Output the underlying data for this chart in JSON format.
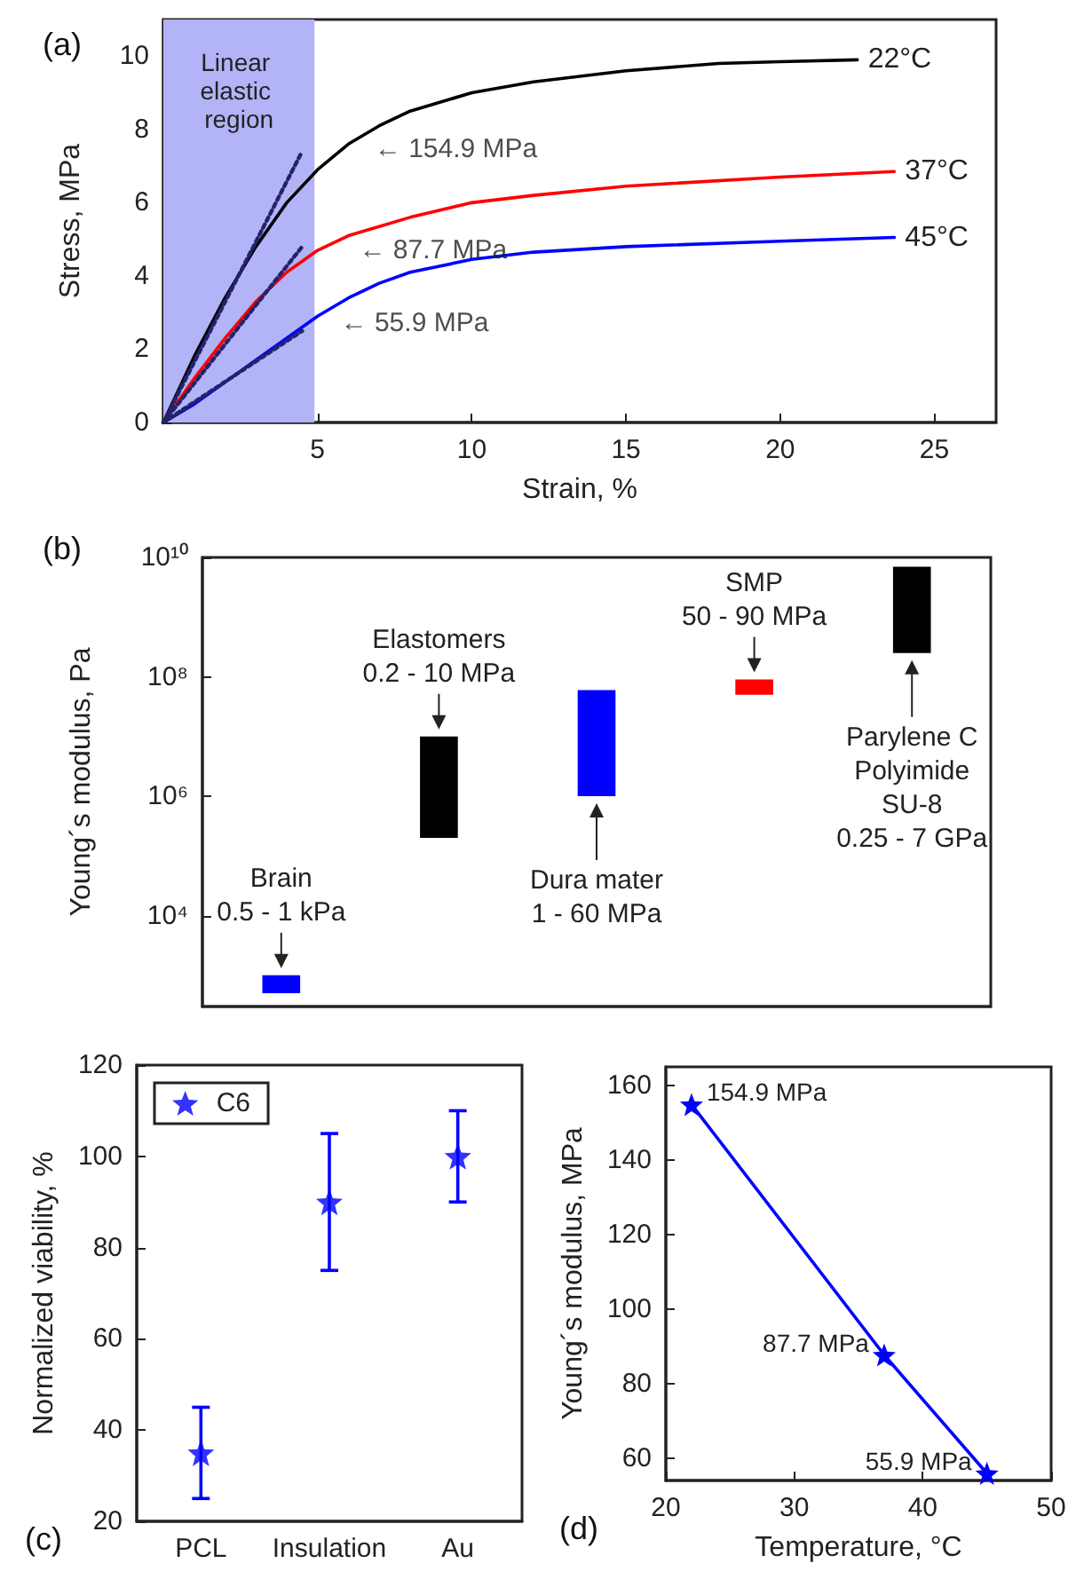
{
  "chart_data": [
    {
      "type": "line",
      "annotations": [
        "(a)",
        {
          "text": "← 154.9 MPa",
          "x": 6.5,
          "y": 7.85
        },
        {
          "text": "← 87.7 MPa",
          "x": 6,
          "y": 5.1
        },
        {
          "text": "← 55.9 MPa",
          "x": 5.4,
          "y": 3.1
        }
      ],
      "xlabel": "Strain, %",
      "ylabel": "Stress, MPa",
      "xlim": [
        0,
        27
      ],
      "ylim": [
        0,
        11
      ],
      "xticks": [
        5,
        10,
        15,
        20,
        25
      ],
      "yticks": [
        0,
        2,
        4,
        6,
        8,
        10
      ],
      "grid": false,
      "legend": false,
      "marker": "none",
      "bands": [
        {
          "axis": "x",
          "from": 0,
          "to": 4.9,
          "label": "Linear elastic region",
          "color": "#b3b3f8"
        }
      ],
      "series": [
        {
          "name": "22°C",
          "color": "#000000",
          "line_style": "solid",
          "x": [
            0,
            1,
            2,
            3,
            4,
            5,
            6,
            7,
            8,
            10,
            12,
            15,
            18,
            20,
            22.5
          ],
          "values": [
            0,
            1.8,
            3.4,
            4.8,
            6,
            6.9,
            7.6,
            8.1,
            8.5,
            9,
            9.3,
            9.6,
            9.8,
            9.85,
            9.9
          ]
        },
        {
          "name": "37°C",
          "color": "#ff0000",
          "line_style": "solid",
          "x": [
            0,
            1,
            2,
            3,
            4,
            5,
            6,
            8,
            10,
            12,
            15,
            20,
            23.7
          ],
          "values": [
            0,
            1.2,
            2.3,
            3.3,
            4.1,
            4.7,
            5.1,
            5.6,
            6,
            6.2,
            6.45,
            6.7,
            6.85
          ]
        },
        {
          "name": "45°C",
          "color": "#0000ff",
          "line_style": "solid",
          "x": [
            0,
            1,
            2,
            3,
            4,
            5,
            6,
            7,
            8,
            10,
            12,
            15,
            20,
            23.7
          ],
          "values": [
            0,
            0.5,
            1.1,
            1.7,
            2.3,
            2.9,
            3.4,
            3.8,
            4.1,
            4.45,
            4.65,
            4.8,
            4.95,
            5.05
          ]
        },
        {
          "color": "#23236b",
          "line_style": "dotted",
          "x": [
            0,
            4.5
          ],
          "values": [
            0,
            7.4
          ]
        },
        {
          "color": "#23236b",
          "line_style": "dotted",
          "x": [
            0,
            4.5
          ],
          "values": [
            0,
            4.8
          ]
        },
        {
          "color": "#23236b",
          "line_style": "dotted",
          "x": [
            0,
            4.5
          ],
          "values": [
            0,
            2.5
          ]
        }
      ]
    },
    {
      "type": "bar",
      "annotations": [
        "(b)"
      ],
      "ylabel": "Young´s modulus, Pa",
      "categories": [
        null,
        null,
        null,
        null,
        null
      ],
      "log": "y",
      "ylim": [
        300,
        10000000000
      ],
      "yticks": [
        {
          "value": 10000,
          "label": "10⁴"
        },
        {
          "value": 1000000,
          "label": "10⁶"
        },
        {
          "value": 100000000,
          "label": "10⁸"
        },
        {
          "value": 10000000000,
          "label": "10¹⁰"
        }
      ],
      "tick_labels": "y",
      "grid": false,
      "base": [
        500,
        200000,
        1000000,
        50000000,
        250000000
      ],
      "values": [
        500,
        9800000,
        59000000,
        40000000,
        6750000000
      ],
      "colors": [
        "#0000ff",
        "#000000",
        "#0000ff",
        "#ff0000",
        "#000000"
      ],
      "value_labels": [
        "Brain\n0.5 - 1 kPa",
        "Elastomers\n0.2 - 10 MPa",
        "Dura mater\n1 - 60 MPa",
        "SMP\n50 - 90 MPa",
        "Parylene C\nPolyimide\nSU-8\n0.25 - 7 GPa"
      ]
    },
    {
      "type": "scatter",
      "annotations": [
        "(c)"
      ],
      "ylabel": "Normalized viability, %",
      "categories": [
        "PCL",
        "Insulation",
        "Au"
      ],
      "ylim": [
        20,
        120
      ],
      "yticks": [
        20,
        40,
        60,
        80,
        100,
        120
      ],
      "legend": "top left",
      "marker": "star",
      "grid": false,
      "series": [
        {
          "name": "C6",
          "color": "#0000ff",
          "values": [
            35,
            90,
            100
          ],
          "errors": [
            [
              25,
              45
            ],
            [
              75,
              105
            ],
            [
              90,
              110
            ]
          ]
        }
      ]
    },
    {
      "type": "line",
      "annotations": [
        "(d)"
      ],
      "xlabel": "Temperature, °C",
      "ylabel": "Young´s modulus, MPa",
      "x": [
        22,
        37,
        45
      ],
      "xlim": [
        20,
        50
      ],
      "xticks": [
        20,
        30,
        40,
        50
      ],
      "ylim": [
        54,
        165
      ],
      "yticks": [
        60,
        80,
        100,
        120,
        140,
        160
      ],
      "marker": "star",
      "grid": false,
      "legend": false,
      "series": [
        {
          "color": "#0000ff",
          "line_style": "solid",
          "values": [
            154.9,
            87.7,
            55.9
          ],
          "value_labels": [
            "154.9 MPa",
            "87.7 MPa",
            "55.9 MPa"
          ]
        }
      ]
    }
  ]
}
